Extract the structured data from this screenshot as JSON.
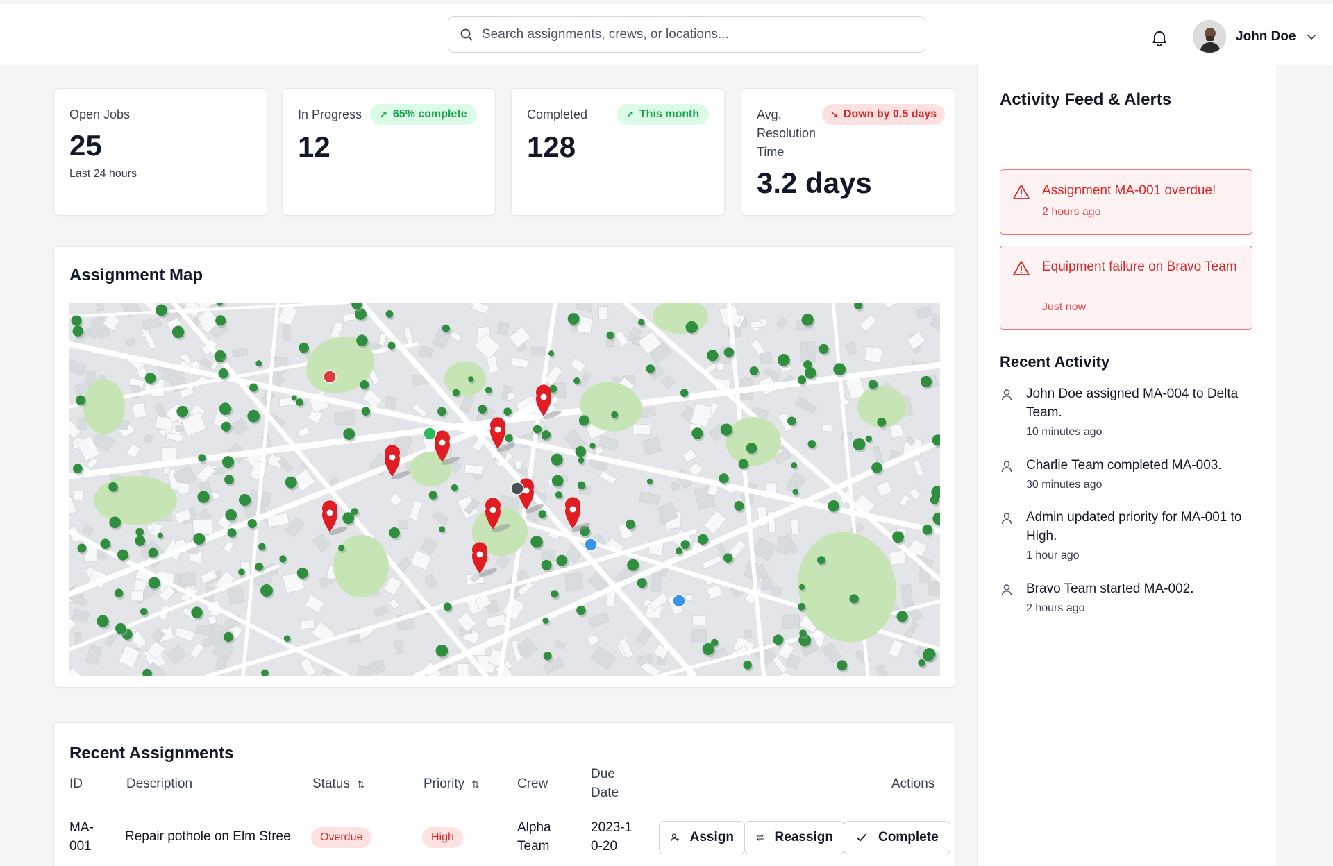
{
  "search": {
    "placeholder": "Search assignments, crews, or locations..."
  },
  "user": {
    "name": "John Doe"
  },
  "stats": [
    {
      "label": "Open Jobs",
      "value": "25",
      "sub": "Last 24 hours"
    },
    {
      "label": "In Progress",
      "value": "12",
      "badge": "65% complete",
      "badge_tone": "positive"
    },
    {
      "label": "Completed",
      "value": "128",
      "badge": "This month",
      "badge_tone": "positive"
    },
    {
      "label": "Avg. Resolution Time",
      "value": "3.2 days",
      "badge": "Down by 0.5 days",
      "badge_tone": "negative"
    }
  ],
  "map": {
    "title": "Assignment Map",
    "markers": [
      {
        "type": "pin",
        "color": "#e11d24"
      },
      {
        "type": "pin",
        "color": "#e11d24"
      },
      {
        "type": "pin",
        "color": "#e11d24"
      },
      {
        "type": "pin",
        "color": "#e11d24"
      },
      {
        "type": "pin",
        "color": "#e11d24"
      },
      {
        "type": "pin",
        "color": "#e11d24"
      },
      {
        "type": "pin",
        "color": "#e11d24"
      },
      {
        "type": "pin",
        "color": "#e11d24"
      },
      {
        "type": "pin",
        "color": "#e11d24"
      },
      {
        "type": "dot",
        "color": "#dc3b3b"
      },
      {
        "type": "dot",
        "color": "#2eb85c"
      },
      {
        "type": "dot",
        "color": "#4b4f55"
      },
      {
        "type": "dot",
        "color": "#3b94e8"
      },
      {
        "type": "dot",
        "color": "#3b94e8"
      }
    ]
  },
  "assignments": {
    "title": "Recent Assignments",
    "columns": {
      "id": "ID",
      "description": "Description",
      "status": "Status",
      "priority": "Priority",
      "crew": "Crew",
      "due_date": "Due Date",
      "actions": "Actions"
    },
    "rows": [
      {
        "id": "MA-001",
        "description": "Repair pothole on Elm Stree",
        "status": "Overdue",
        "priority": "High",
        "crew": "Alpha Team",
        "due_date": "2023-10-20"
      }
    ],
    "actions": {
      "assign": "Assign",
      "reassign": "Reassign",
      "complete": "Complete"
    }
  },
  "panel": {
    "title": "Activity Feed & Alerts",
    "alerts": [
      {
        "title": "Assignment MA-001 overdue!",
        "time": "2 hours ago"
      },
      {
        "title": "Equipment failure on Bravo Team",
        "time": "Just now"
      }
    ],
    "recent_title": "Recent Activity",
    "activity": [
      {
        "text": "John Doe assigned MA-004 to Delta Team.",
        "time": "10 minutes ago"
      },
      {
        "text": "Charlie Team completed MA-003.",
        "time": "30 minutes ago"
      },
      {
        "text": "Admin updated priority for MA-001 to High.",
        "time": "1 hour ago"
      },
      {
        "text": "Bravo Team started MA-002.",
        "time": "2 hours ago"
      }
    ]
  },
  "colors": {
    "danger": "#dc2626",
    "success": "#16a34a",
    "map_park": "#c9e6b8",
    "map_tree": "#2f8f3e"
  }
}
